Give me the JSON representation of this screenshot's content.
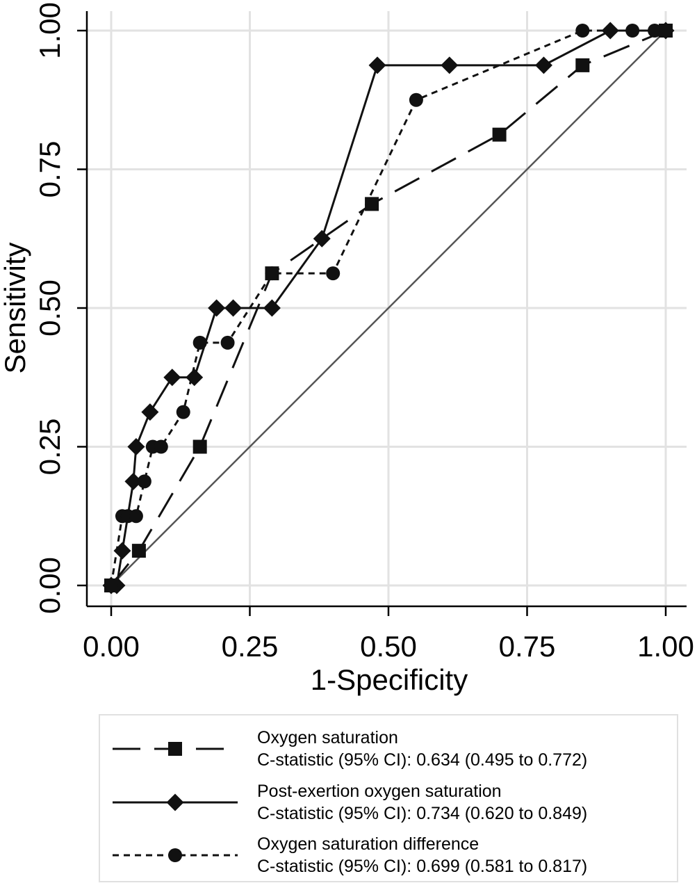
{
  "chart_data": {
    "type": "line",
    "title": "",
    "xlabel": "1-Specificity",
    "ylabel": "Sensitivity",
    "xlim": [
      0,
      1
    ],
    "ylim": [
      0,
      1
    ],
    "x_ticks": [
      "0.00",
      "0.25",
      "0.50",
      "0.75",
      "1.00"
    ],
    "y_ticks": [
      "0.00",
      "0.25",
      "0.50",
      "0.75",
      "1.00"
    ],
    "grid": true,
    "legend_position": "bottom",
    "reference_line": {
      "x": [
        0,
        1
      ],
      "y": [
        0,
        1
      ]
    },
    "series": [
      {
        "name": "Oxygen saturation",
        "subtitle": "C-statistic (95% CI): 0.634 (0.495 to 0.772)",
        "style": "long-dash",
        "marker": "square",
        "x": [
          0.0,
          0.05,
          0.16,
          0.29,
          0.47,
          0.7,
          0.85,
          1.0
        ],
        "y": [
          0.0,
          0.0625,
          0.25,
          0.5625,
          0.6875,
          0.8125,
          0.9375,
          1.0
        ]
      },
      {
        "name": "Post-exertion oxygen saturation",
        "subtitle": "C-statistic (95% CI): 0.734  (0.620 to 0.849)",
        "style": "solid",
        "marker": "diamond",
        "x": [
          0.0,
          0.01,
          0.02,
          0.04,
          0.045,
          0.07,
          0.11,
          0.15,
          0.19,
          0.22,
          0.29,
          0.38,
          0.48,
          0.61,
          0.78,
          0.9,
          1.0
        ],
        "y": [
          0.0,
          0.0,
          0.0625,
          0.1875,
          0.25,
          0.3125,
          0.375,
          0.375,
          0.5,
          0.5,
          0.5,
          0.625,
          0.9375,
          0.9375,
          0.9375,
          1.0,
          1.0
        ]
      },
      {
        "name": "Oxygen saturation difference",
        "subtitle": "C-statistic (95% CI): 0.699  (0.581 to 0.817)",
        "style": "short-dash",
        "marker": "circle",
        "x": [
          0.0,
          0.02,
          0.03,
          0.045,
          0.06,
          0.075,
          0.09,
          0.13,
          0.16,
          0.21,
          0.29,
          0.4,
          0.55,
          0.85,
          0.94,
          0.98,
          1.0
        ],
        "y": [
          0.0,
          0.125,
          0.125,
          0.125,
          0.1875,
          0.25,
          0.25,
          0.3125,
          0.4375,
          0.4375,
          0.5625,
          0.5625,
          0.875,
          1.0,
          1.0,
          1.0,
          1.0
        ]
      }
    ]
  }
}
